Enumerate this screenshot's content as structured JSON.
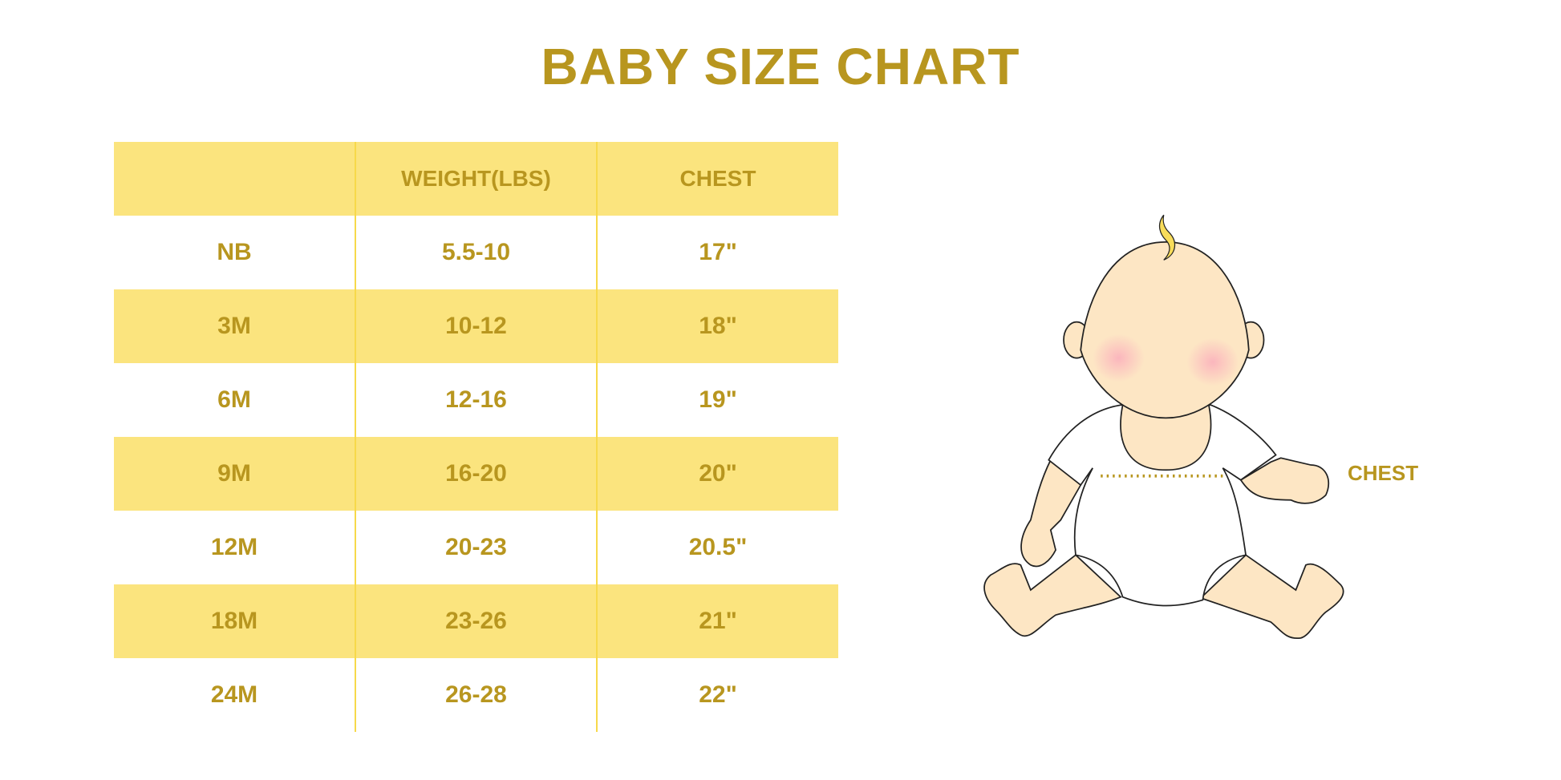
{
  "title": "BABY SIZE CHART",
  "table": {
    "headers": [
      "",
      "WEIGHT(LBS)",
      "CHEST"
    ],
    "rows": [
      [
        "NB",
        "5.5-10",
        "17\""
      ],
      [
        "3M",
        "10-12",
        "18\""
      ],
      [
        "6M",
        "12-16",
        "19\""
      ],
      [
        "9M",
        "16-20",
        "20\""
      ],
      [
        "12M",
        "20-23",
        "20.5\""
      ],
      [
        "18M",
        "23-26",
        "21\""
      ],
      [
        "24M",
        "26-28",
        "22\""
      ]
    ]
  },
  "illustration": {
    "chest_label": "CHEST"
  },
  "colors": {
    "text": "#b8961f",
    "band": "#fbe47e",
    "divider": "#f7d94a",
    "skin": "#fde6c4"
  }
}
